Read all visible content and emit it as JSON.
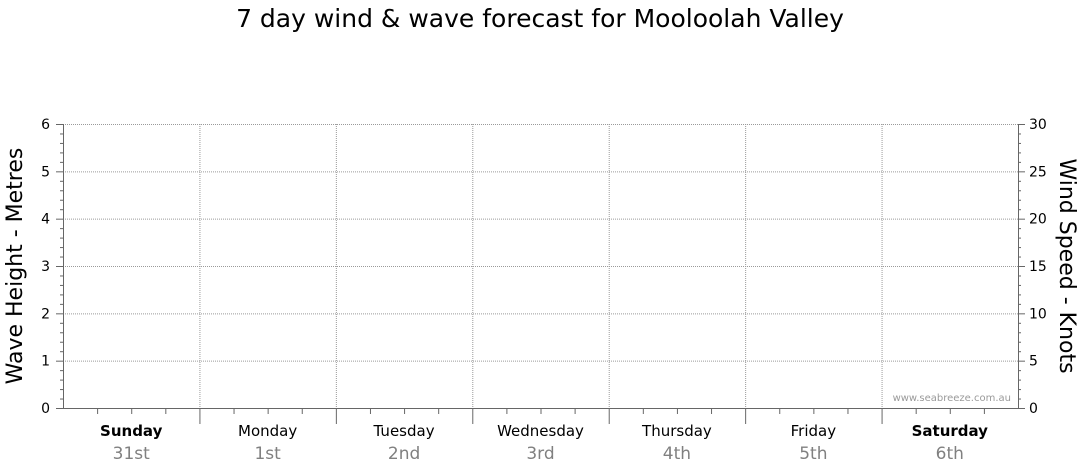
{
  "chart_data": {
    "type": "line",
    "title": "7 day wind & wave forecast for Mooloolah Valley",
    "y_left": {
      "label": "Wave Height - Metres",
      "min": 0,
      "max": 6,
      "ticks": [
        "0",
        "1",
        "2",
        "3",
        "4",
        "5",
        "6"
      ]
    },
    "y_right": {
      "label": "Wind Speed - Knots",
      "min": 0,
      "max": 30,
      "ticks": [
        "0",
        "5",
        "10",
        "15",
        "20",
        "25",
        "30"
      ]
    },
    "days": [
      {
        "name": "Sunday",
        "date": "31st",
        "weekend": true
      },
      {
        "name": "Monday",
        "date": "1st",
        "weekend": false
      },
      {
        "name": "Tuesday",
        "date": "2nd",
        "weekend": false
      },
      {
        "name": "Wednesday",
        "date": "3rd",
        "weekend": false
      },
      {
        "name": "Thursday",
        "date": "4th",
        "weekend": false
      },
      {
        "name": "Friday",
        "date": "5th",
        "weekend": false
      },
      {
        "name": "Saturday",
        "date": "6th",
        "weekend": true
      }
    ],
    "series": [],
    "grid": true,
    "watermark": "www.seabreeze.com.au"
  }
}
